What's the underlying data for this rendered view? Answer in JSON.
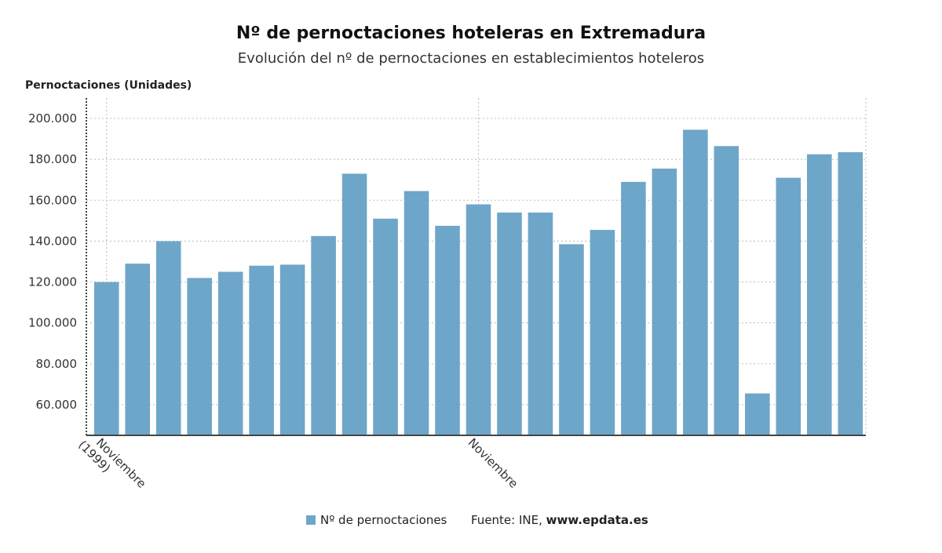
{
  "chart_data": {
    "type": "bar",
    "title": "Nº de pernoctaciones hoteleras en Extremadura",
    "subtitle": "Evolución del nº de pernoctaciones en establecimientos hoteleros",
    "ylabel": "Pernoctaciones (Unidades)",
    "xlabel": "",
    "ylim": [
      45000,
      210000
    ],
    "yticks": [
      60000,
      80000,
      100000,
      120000,
      140000,
      160000,
      180000,
      200000
    ],
    "ytick_labels": [
      "60.000",
      "80.000",
      "100.000",
      "120.000",
      "140.000",
      "160.000",
      "180.000",
      "200.000"
    ],
    "x_tick_labels": [
      {
        "index": 0,
        "lines": [
          "Noviembre",
          "(1999)"
        ]
      },
      {
        "index": 12,
        "lines": [
          "Noviembre"
        ]
      }
    ],
    "grid": true,
    "legend_position": "bottom",
    "series": [
      {
        "name": "Nº de pernoctaciones",
        "color": "#6ea6c9",
        "values": [
          120000,
          129000,
          140000,
          122000,
          125000,
          128000,
          128500,
          142500,
          173000,
          151000,
          164500,
          147500,
          158000,
          154000,
          154000,
          138500,
          145500,
          169000,
          175500,
          194500,
          186500,
          65500,
          171000,
          182500,
          183500
        ]
      }
    ]
  },
  "source": {
    "label": "Fuente: INE,",
    "site": "www.epdata.es"
  }
}
